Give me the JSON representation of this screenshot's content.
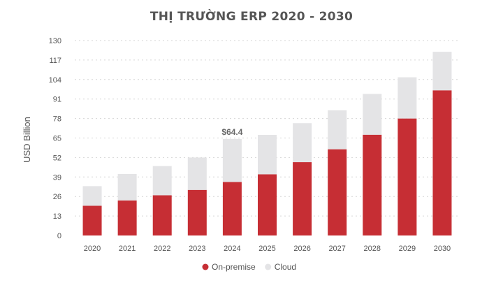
{
  "chart_data": {
    "type": "bar",
    "stacked": true,
    "title": "THỊ TRƯỜNG ERP 2020 - 2030",
    "xlabel": "",
    "ylabel": "USD Billion",
    "categories": [
      "2020",
      "2021",
      "2022",
      "2023",
      "2024",
      "2025",
      "2026",
      "2027",
      "2028",
      "2029",
      "2030"
    ],
    "y_ticks": [
      0,
      13,
      26,
      39,
      52,
      65,
      78,
      91,
      104,
      117,
      130
    ],
    "ylim": [
      0,
      130
    ],
    "grid": true,
    "legend_position": "bottom",
    "series": [
      {
        "name": "On-premise",
        "color": "#c62e34",
        "values": [
          19.8,
          23.4,
          26.8,
          30.4,
          35.7,
          40.8,
          48.9,
          57.5,
          67.2,
          78.0,
          96.8
        ]
      },
      {
        "name": "Cloud",
        "color": "#e4e4e6",
        "values": [
          13.1,
          17.6,
          19.5,
          21.6,
          28.7,
          26.3,
          26.0,
          26.0,
          27.2,
          27.5,
          25.7
        ]
      }
    ],
    "annotations": [
      {
        "category": "2024",
        "text": "$64.4"
      }
    ]
  }
}
